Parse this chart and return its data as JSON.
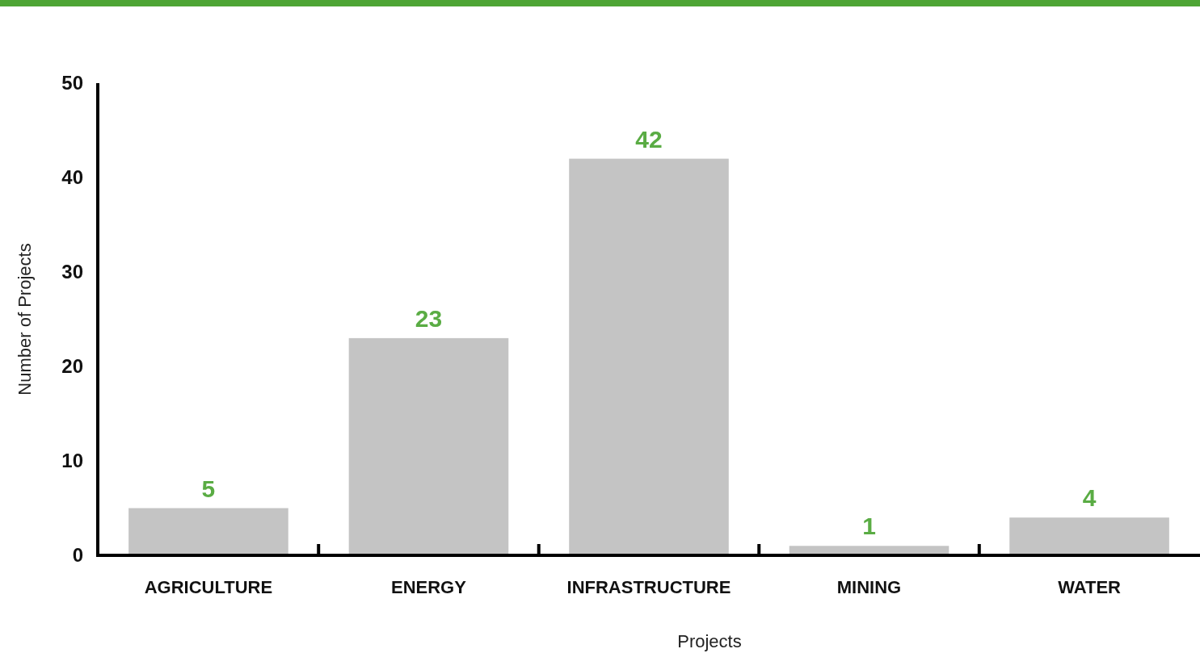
{
  "chart_data": {
    "type": "bar",
    "xlabel": "Projects",
    "ylabel": "Number of Projects",
    "categories": [
      "AGRICULTURE",
      "ENERGY",
      "INFRASTRUCTURE",
      "MINING",
      "WATER"
    ],
    "values": [
      5,
      23,
      42,
      1,
      4
    ],
    "color": "#c4c4c4",
    "ylim": [
      0,
      50
    ],
    "yticks": [
      0,
      10,
      20,
      30,
      40,
      50
    ],
    "grid": false,
    "data_labels": true
  }
}
